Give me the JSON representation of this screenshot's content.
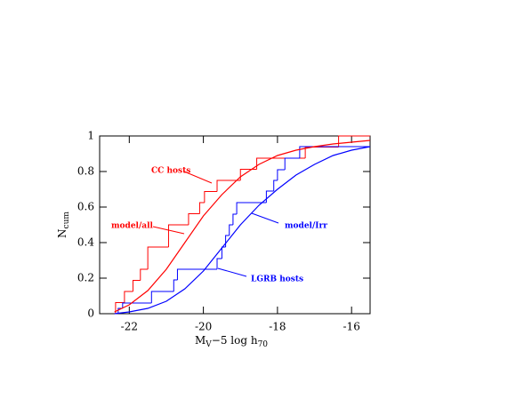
{
  "chart_data": {
    "type": "line",
    "x_label": {
      "main": "M",
      "sub": "V",
      "rest": "−5 log h",
      "sub2": "70"
    },
    "y_label": {
      "main": "N",
      "sub": "cum"
    },
    "xlim": [
      -22.8,
      -15.5
    ],
    "ylim": [
      0,
      1
    ],
    "xticks": [
      -22,
      -20,
      -18,
      -16
    ],
    "yticks": [
      0,
      0.2,
      0.4,
      0.6,
      0.8,
      1
    ],
    "steps": [
      {
        "name": "CC hosts",
        "color": "#ff0000",
        "x": [
          -22.37,
          -22.13,
          -21.9,
          -21.7,
          -21.5,
          -20.94,
          -20.4,
          -20.1,
          -19.97,
          -19.63,
          -19.0,
          -18.56,
          -17.25,
          -16.35
        ],
        "values": [
          0.0625,
          0.125,
          0.1875,
          0.25,
          0.375,
          0.5,
          0.5625,
          0.625,
          0.6875,
          0.75,
          0.8125,
          0.875,
          0.9375,
          1
        ]
      },
      {
        "name": "LGRB hosts",
        "color": "#0000ff",
        "x": [
          -22.3,
          -22.18,
          -21.4,
          -20.8,
          -20.7,
          -19.63,
          -19.5,
          -19.4,
          -19.3,
          -19.2,
          -19.1,
          -18.3,
          -18.1,
          -18.0,
          -17.8,
          -17.4
        ],
        "values": [
          0.03,
          0.06,
          0.125,
          0.19,
          0.25,
          0.31,
          0.375,
          0.44,
          0.5,
          0.56,
          0.625,
          0.69,
          0.75,
          0.81,
          0.875,
          0.94
        ]
      }
    ],
    "x": [
      -22.4,
      -22,
      -21.5,
      -21,
      -20.5,
      -20,
      -19.5,
      -19,
      -18.5,
      -18,
      -17.5,
      -17,
      -16.5,
      -16,
      -15.5
    ],
    "series": [
      {
        "name": "model/all",
        "color": "#ff0000",
        "values": [
          0.01,
          0.05,
          0.13,
          0.25,
          0.4,
          0.55,
          0.67,
          0.77,
          0.84,
          0.89,
          0.92,
          0.94,
          0.955,
          0.965,
          0.975
        ]
      },
      {
        "name": "model/Irr",
        "color": "#0000ff",
        "values": [
          0.0,
          0.01,
          0.03,
          0.07,
          0.14,
          0.24,
          0.37,
          0.5,
          0.61,
          0.7,
          0.78,
          0.84,
          0.89,
          0.92,
          0.94
        ]
      }
    ]
  }
}
